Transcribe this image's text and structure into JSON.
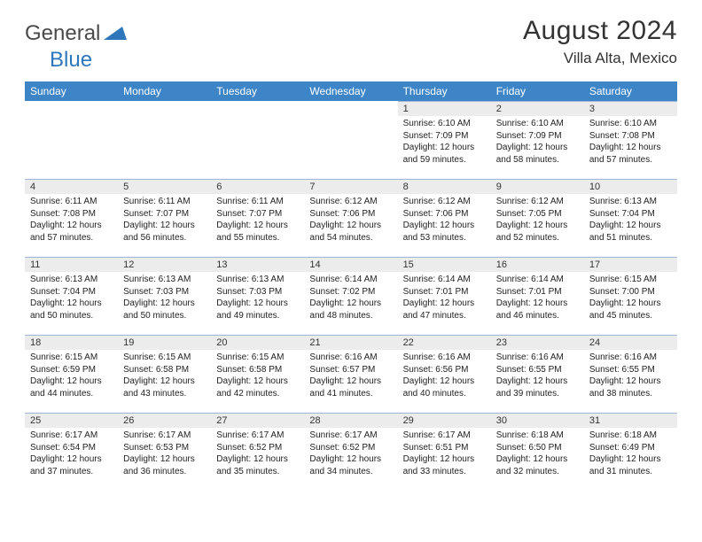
{
  "logo": {
    "part1": "General",
    "part2": "Blue"
  },
  "title": "August 2024",
  "location": "Villa Alta, Mexico",
  "colors": {
    "header_bg": "#3d85c6",
    "header_fg": "#ffffff",
    "daynum_bg": "#ececec",
    "daynum_border": "#9fb8cf",
    "text": "#222222",
    "logo_gray": "#4a4a4a",
    "logo_blue": "#2f77bb"
  },
  "weekdays": [
    "Sunday",
    "Monday",
    "Tuesday",
    "Wednesday",
    "Thursday",
    "Friday",
    "Saturday"
  ],
  "weeks": [
    [
      {
        "n": "",
        "sr": "",
        "ss": "",
        "dl": ""
      },
      {
        "n": "",
        "sr": "",
        "ss": "",
        "dl": ""
      },
      {
        "n": "",
        "sr": "",
        "ss": "",
        "dl": ""
      },
      {
        "n": "",
        "sr": "",
        "ss": "",
        "dl": ""
      },
      {
        "n": "1",
        "sr": "Sunrise: 6:10 AM",
        "ss": "Sunset: 7:09 PM",
        "dl": "Daylight: 12 hours and 59 minutes."
      },
      {
        "n": "2",
        "sr": "Sunrise: 6:10 AM",
        "ss": "Sunset: 7:09 PM",
        "dl": "Daylight: 12 hours and 58 minutes."
      },
      {
        "n": "3",
        "sr": "Sunrise: 6:10 AM",
        "ss": "Sunset: 7:08 PM",
        "dl": "Daylight: 12 hours and 57 minutes."
      }
    ],
    [
      {
        "n": "4",
        "sr": "Sunrise: 6:11 AM",
        "ss": "Sunset: 7:08 PM",
        "dl": "Daylight: 12 hours and 57 minutes."
      },
      {
        "n": "5",
        "sr": "Sunrise: 6:11 AM",
        "ss": "Sunset: 7:07 PM",
        "dl": "Daylight: 12 hours and 56 minutes."
      },
      {
        "n": "6",
        "sr": "Sunrise: 6:11 AM",
        "ss": "Sunset: 7:07 PM",
        "dl": "Daylight: 12 hours and 55 minutes."
      },
      {
        "n": "7",
        "sr": "Sunrise: 6:12 AM",
        "ss": "Sunset: 7:06 PM",
        "dl": "Daylight: 12 hours and 54 minutes."
      },
      {
        "n": "8",
        "sr": "Sunrise: 6:12 AM",
        "ss": "Sunset: 7:06 PM",
        "dl": "Daylight: 12 hours and 53 minutes."
      },
      {
        "n": "9",
        "sr": "Sunrise: 6:12 AM",
        "ss": "Sunset: 7:05 PM",
        "dl": "Daylight: 12 hours and 52 minutes."
      },
      {
        "n": "10",
        "sr": "Sunrise: 6:13 AM",
        "ss": "Sunset: 7:04 PM",
        "dl": "Daylight: 12 hours and 51 minutes."
      }
    ],
    [
      {
        "n": "11",
        "sr": "Sunrise: 6:13 AM",
        "ss": "Sunset: 7:04 PM",
        "dl": "Daylight: 12 hours and 50 minutes."
      },
      {
        "n": "12",
        "sr": "Sunrise: 6:13 AM",
        "ss": "Sunset: 7:03 PM",
        "dl": "Daylight: 12 hours and 50 minutes."
      },
      {
        "n": "13",
        "sr": "Sunrise: 6:13 AM",
        "ss": "Sunset: 7:03 PM",
        "dl": "Daylight: 12 hours and 49 minutes."
      },
      {
        "n": "14",
        "sr": "Sunrise: 6:14 AM",
        "ss": "Sunset: 7:02 PM",
        "dl": "Daylight: 12 hours and 48 minutes."
      },
      {
        "n": "15",
        "sr": "Sunrise: 6:14 AM",
        "ss": "Sunset: 7:01 PM",
        "dl": "Daylight: 12 hours and 47 minutes."
      },
      {
        "n": "16",
        "sr": "Sunrise: 6:14 AM",
        "ss": "Sunset: 7:01 PM",
        "dl": "Daylight: 12 hours and 46 minutes."
      },
      {
        "n": "17",
        "sr": "Sunrise: 6:15 AM",
        "ss": "Sunset: 7:00 PM",
        "dl": "Daylight: 12 hours and 45 minutes."
      }
    ],
    [
      {
        "n": "18",
        "sr": "Sunrise: 6:15 AM",
        "ss": "Sunset: 6:59 PM",
        "dl": "Daylight: 12 hours and 44 minutes."
      },
      {
        "n": "19",
        "sr": "Sunrise: 6:15 AM",
        "ss": "Sunset: 6:58 PM",
        "dl": "Daylight: 12 hours and 43 minutes."
      },
      {
        "n": "20",
        "sr": "Sunrise: 6:15 AM",
        "ss": "Sunset: 6:58 PM",
        "dl": "Daylight: 12 hours and 42 minutes."
      },
      {
        "n": "21",
        "sr": "Sunrise: 6:16 AM",
        "ss": "Sunset: 6:57 PM",
        "dl": "Daylight: 12 hours and 41 minutes."
      },
      {
        "n": "22",
        "sr": "Sunrise: 6:16 AM",
        "ss": "Sunset: 6:56 PM",
        "dl": "Daylight: 12 hours and 40 minutes."
      },
      {
        "n": "23",
        "sr": "Sunrise: 6:16 AM",
        "ss": "Sunset: 6:55 PM",
        "dl": "Daylight: 12 hours and 39 minutes."
      },
      {
        "n": "24",
        "sr": "Sunrise: 6:16 AM",
        "ss": "Sunset: 6:55 PM",
        "dl": "Daylight: 12 hours and 38 minutes."
      }
    ],
    [
      {
        "n": "25",
        "sr": "Sunrise: 6:17 AM",
        "ss": "Sunset: 6:54 PM",
        "dl": "Daylight: 12 hours and 37 minutes."
      },
      {
        "n": "26",
        "sr": "Sunrise: 6:17 AM",
        "ss": "Sunset: 6:53 PM",
        "dl": "Daylight: 12 hours and 36 minutes."
      },
      {
        "n": "27",
        "sr": "Sunrise: 6:17 AM",
        "ss": "Sunset: 6:52 PM",
        "dl": "Daylight: 12 hours and 35 minutes."
      },
      {
        "n": "28",
        "sr": "Sunrise: 6:17 AM",
        "ss": "Sunset: 6:52 PM",
        "dl": "Daylight: 12 hours and 34 minutes."
      },
      {
        "n": "29",
        "sr": "Sunrise: 6:17 AM",
        "ss": "Sunset: 6:51 PM",
        "dl": "Daylight: 12 hours and 33 minutes."
      },
      {
        "n": "30",
        "sr": "Sunrise: 6:18 AM",
        "ss": "Sunset: 6:50 PM",
        "dl": "Daylight: 12 hours and 32 minutes."
      },
      {
        "n": "31",
        "sr": "Sunrise: 6:18 AM",
        "ss": "Sunset: 6:49 PM",
        "dl": "Daylight: 12 hours and 31 minutes."
      }
    ]
  ]
}
